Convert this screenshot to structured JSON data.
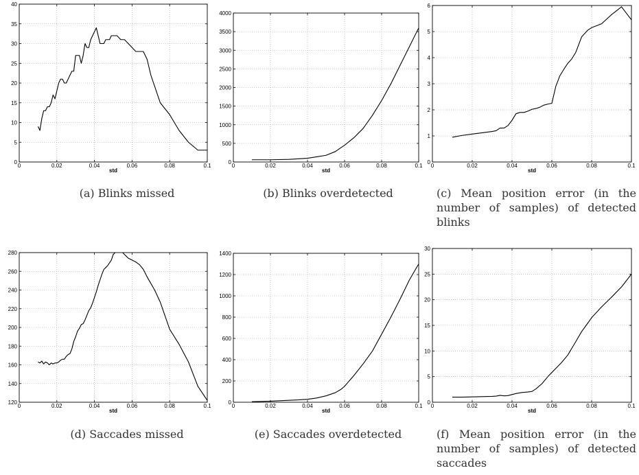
{
  "charts": [
    {
      "caption": "(a) Blinks missed",
      "chart_data": {
        "type": "line",
        "xlabel": "std",
        "xlim": [
          0,
          0.1
        ],
        "ylim": [
          0,
          40
        ],
        "xticks": [
          0,
          0.02,
          0.04,
          0.06,
          0.08,
          0.1
        ],
        "yticks": [
          0,
          5,
          10,
          15,
          20,
          25,
          30,
          35,
          40
        ],
        "xtick_labels": [
          "0",
          "0.02",
          "0.04",
          "0.06",
          "0.08",
          "0.1"
        ],
        "ytick_labels": [
          "0",
          "5",
          "10",
          "15",
          "20",
          "25",
          "30",
          "35",
          "40"
        ],
        "grid": true,
        "x": [
          0.01,
          0.011,
          0.012,
          0.013,
          0.014,
          0.015,
          0.016,
          0.017,
          0.018,
          0.019,
          0.02,
          0.021,
          0.022,
          0.023,
          0.024,
          0.025,
          0.026,
          0.027,
          0.028,
          0.029,
          0.03,
          0.031,
          0.032,
          0.033,
          0.034,
          0.035,
          0.036,
          0.037,
          0.038,
          0.039,
          0.04,
          0.041,
          0.042,
          0.043,
          0.044,
          0.045,
          0.046,
          0.047,
          0.048,
          0.049,
          0.05,
          0.052,
          0.054,
          0.056,
          0.058,
          0.06,
          0.062,
          0.064,
          0.066,
          0.068,
          0.07,
          0.075,
          0.08,
          0.085,
          0.09,
          0.095,
          0.1
        ],
        "y": [
          9,
          8,
          11,
          13,
          13,
          14,
          14,
          15,
          17,
          16,
          18,
          20,
          21,
          21,
          20,
          20,
          21,
          22,
          23,
          23,
          27,
          27,
          27,
          25,
          27,
          30,
          29,
          29,
          31,
          32,
          33,
          34,
          32,
          30,
          30,
          30,
          31,
          31,
          31,
          32,
          32,
          32,
          31,
          31,
          30,
          29,
          28,
          28,
          28,
          26,
          22,
          15,
          12,
          8,
          5,
          3,
          3
        ]
      }
    },
    {
      "caption": "(b) Blinks overdetected",
      "chart_data": {
        "type": "line",
        "xlabel": "std",
        "xlim": [
          0,
          0.1
        ],
        "ylim": [
          0,
          4000
        ],
        "xticks": [
          0,
          0.02,
          0.04,
          0.06,
          0.08,
          0.1
        ],
        "yticks": [
          0,
          500,
          1000,
          1500,
          2000,
          2500,
          3000,
          3500,
          4000
        ],
        "xtick_labels": [
          "0",
          "0.02",
          "0.04",
          "0.06",
          "0.08",
          "0.1"
        ],
        "ytick_labels": [
          "0",
          "500",
          "1000",
          "1500",
          "2000",
          "2500",
          "3000",
          "3500",
          "4000"
        ],
        "grid": true,
        "x": [
          0.01,
          0.02,
          0.03,
          0.04,
          0.045,
          0.05,
          0.055,
          0.06,
          0.065,
          0.07,
          0.075,
          0.08,
          0.085,
          0.09,
          0.095,
          0.1
        ],
        "y": [
          60,
          60,
          70,
          100,
          140,
          180,
          280,
          450,
          650,
          900,
          1250,
          1650,
          2100,
          2600,
          3100,
          3600
        ]
      }
    },
    {
      "caption": "(c) Mean position error (in the number of samples) of detected blinks",
      "chart_data": {
        "type": "line",
        "xlabel": "std",
        "xlim": [
          0,
          0.1
        ],
        "ylim": [
          0,
          6
        ],
        "xticks": [
          0,
          0.02,
          0.04,
          0.06,
          0.08,
          0.1
        ],
        "yticks": [
          0,
          1,
          2,
          3,
          4,
          5,
          6
        ],
        "xtick_labels": [
          "0",
          "0.02",
          "0.04",
          "0.06",
          "0.08",
          "0.1"
        ],
        "ytick_labels": [
          "0",
          "1",
          "2",
          "3",
          "4",
          "5",
          "6"
        ],
        "grid": true,
        "x": [
          0.01,
          0.015,
          0.02,
          0.025,
          0.03,
          0.032,
          0.034,
          0.036,
          0.038,
          0.04,
          0.042,
          0.044,
          0.046,
          0.048,
          0.05,
          0.052,
          0.054,
          0.056,
          0.058,
          0.06,
          0.062,
          0.064,
          0.066,
          0.068,
          0.07,
          0.072,
          0.075,
          0.078,
          0.08,
          0.085,
          0.09,
          0.095,
          0.1
        ],
        "y": [
          0.95,
          1.02,
          1.07,
          1.12,
          1.17,
          1.2,
          1.3,
          1.3,
          1.4,
          1.6,
          1.85,
          1.9,
          1.9,
          1.95,
          2.02,
          2.05,
          2.1,
          2.18,
          2.22,
          2.25,
          2.9,
          3.3,
          3.55,
          3.78,
          3.95,
          4.2,
          4.8,
          5.05,
          5.15,
          5.3,
          5.65,
          5.95,
          5.45
        ]
      }
    },
    {
      "caption": "(d) Saccades missed",
      "chart_data": {
        "type": "line",
        "xlabel": "std",
        "xlim": [
          0,
          0.1
        ],
        "ylim": [
          120,
          280
        ],
        "xticks": [
          0,
          0.02,
          0.04,
          0.06,
          0.08,
          0.1
        ],
        "yticks": [
          120,
          140,
          160,
          180,
          200,
          220,
          240,
          260,
          280
        ],
        "xtick_labels": [
          "0",
          "0.02",
          "0.04",
          "0.06",
          "0.08",
          "0.1"
        ],
        "ytick_labels": [
          "120",
          "140",
          "160",
          "180",
          "200",
          "220",
          "240",
          "260",
          "280"
        ],
        "grid": true,
        "x": [
          0.01,
          0.011,
          0.012,
          0.013,
          0.014,
          0.015,
          0.016,
          0.017,
          0.018,
          0.019,
          0.02,
          0.021,
          0.022,
          0.023,
          0.024,
          0.025,
          0.026,
          0.027,
          0.028,
          0.029,
          0.03,
          0.031,
          0.032,
          0.033,
          0.034,
          0.035,
          0.036,
          0.037,
          0.038,
          0.039,
          0.04,
          0.041,
          0.042,
          0.043,
          0.044,
          0.045,
          0.046,
          0.047,
          0.048,
          0.049,
          0.05,
          0.051,
          0.052,
          0.053,
          0.054,
          0.055,
          0.056,
          0.057,
          0.058,
          0.059,
          0.06,
          0.062,
          0.064,
          0.066,
          0.068,
          0.07,
          0.072,
          0.075,
          0.08,
          0.085,
          0.09,
          0.095,
          0.1
        ],
        "y": [
          163,
          162,
          164,
          161,
          163,
          162,
          160,
          162,
          161,
          162,
          162,
          163,
          165,
          166,
          166,
          169,
          171,
          172,
          177,
          185,
          190,
          196,
          199,
          203,
          204,
          208,
          213,
          218,
          221,
          226,
          232,
          238,
          245,
          251,
          257,
          262,
          264,
          266,
          269,
          272,
          278,
          280,
          282,
          281,
          282,
          280,
          278,
          276,
          274,
          273,
          272,
          270,
          267,
          262,
          254,
          247,
          240,
          227,
          198,
          182,
          163,
          137,
          122
        ]
      }
    },
    {
      "caption": "(e) Saccades overdetected",
      "chart_data": {
        "type": "line",
        "xlabel": "std",
        "xlim": [
          0,
          0.1
        ],
        "ylim": [
          0,
          1400
        ],
        "xticks": [
          0,
          0.02,
          0.04,
          0.06,
          0.08,
          0.1
        ],
        "yticks": [
          0,
          200,
          400,
          600,
          800,
          1000,
          1200,
          1400
        ],
        "xtick_labels": [
          "0",
          "0.02",
          "0.04",
          "0.06",
          "0.08",
          "0.1"
        ],
        "ytick_labels": [
          "0",
          "200",
          "400",
          "600",
          "800",
          "1000",
          "1200",
          "1400"
        ],
        "grid": true,
        "x": [
          0.01,
          0.02,
          0.03,
          0.035,
          0.04,
          0.045,
          0.05,
          0.055,
          0.058,
          0.06,
          0.065,
          0.07,
          0.075,
          0.08,
          0.085,
          0.09,
          0.095,
          0.1
        ],
        "y": [
          5,
          10,
          18,
          22,
          28,
          40,
          60,
          90,
          120,
          150,
          250,
          360,
          480,
          640,
          800,
          970,
          1150,
          1300
        ]
      }
    },
    {
      "caption": "(f) Mean position error (in the number of samples) of detected saccades",
      "chart_data": {
        "type": "line",
        "xlabel": "std",
        "xlim": [
          0,
          0.1
        ],
        "ylim": [
          0,
          30
        ],
        "xticks": [
          0,
          0.02,
          0.04,
          0.06,
          0.08,
          0.1
        ],
        "yticks": [
          0,
          5,
          10,
          15,
          20,
          25,
          30
        ],
        "xtick_labels": [
          "0",
          "0.02",
          "0.04",
          "0.06",
          "0.08",
          "0.1"
        ],
        "ytick_labels": [
          "0",
          "5",
          "10",
          "15",
          "20",
          "25",
          "30"
        ],
        "grid": true,
        "x": [
          0.01,
          0.015,
          0.02,
          0.025,
          0.03,
          0.032,
          0.034,
          0.036,
          0.038,
          0.04,
          0.042,
          0.045,
          0.048,
          0.05,
          0.052,
          0.055,
          0.058,
          0.06,
          0.062,
          0.065,
          0.068,
          0.07,
          0.072,
          0.075,
          0.078,
          0.08,
          0.085,
          0.09,
          0.095,
          0.1
        ],
        "y": [
          1,
          1,
          1.05,
          1.1,
          1.15,
          1.2,
          1.35,
          1.25,
          1.3,
          1.5,
          1.7,
          1.9,
          2,
          2.1,
          2.6,
          3.6,
          5,
          5.8,
          6.6,
          7.8,
          9.2,
          10.5,
          11.8,
          13.8,
          15.4,
          16.5,
          18.6,
          20.5,
          22.5,
          25
        ]
      }
    }
  ]
}
